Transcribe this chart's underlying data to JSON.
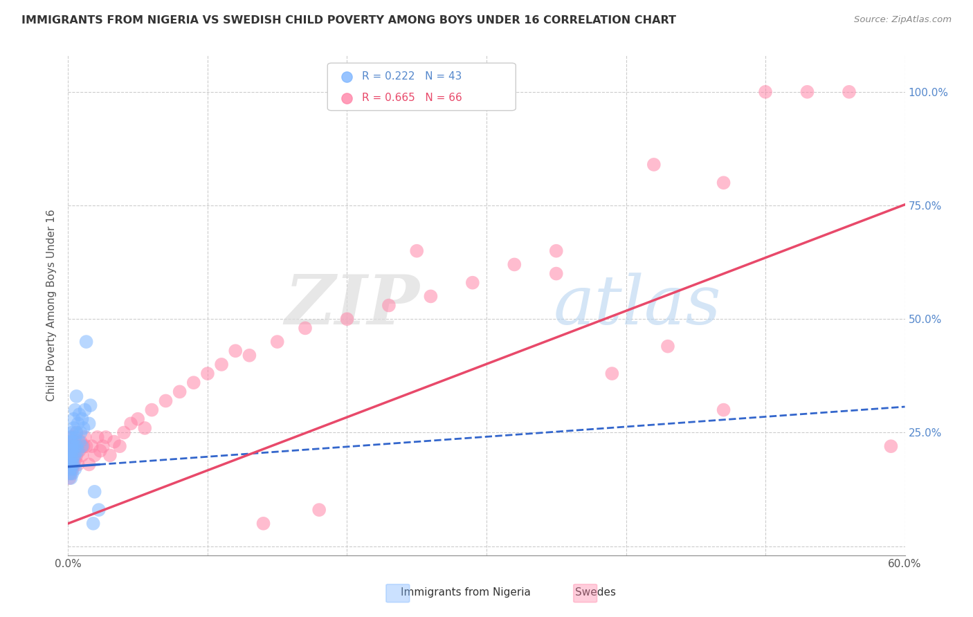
{
  "title": "IMMIGRANTS FROM NIGERIA VS SWEDISH CHILD POVERTY AMONG BOYS UNDER 16 CORRELATION CHART",
  "source": "Source: ZipAtlas.com",
  "ylabel": "Child Poverty Among Boys Under 16",
  "xlim": [
    0.0,
    0.6
  ],
  "ylim": [
    -0.02,
    1.08
  ],
  "xticks": [
    0.0,
    0.1,
    0.2,
    0.3,
    0.4,
    0.5,
    0.6
  ],
  "xticklabels": [
    "0.0%",
    "",
    "",
    "",
    "",
    "",
    "60.0%"
  ],
  "yticks": [
    0.0,
    0.25,
    0.5,
    0.75,
    1.0
  ],
  "yticklabels": [
    "",
    "25.0%",
    "50.0%",
    "75.0%",
    "100.0%"
  ],
  "legend1_text": "R = 0.222   N = 43",
  "legend2_text": "R = 0.665   N = 66",
  "blue_color": "#7EB6FF",
  "pink_color": "#FF85A8",
  "blue_line_color": "#3366CC",
  "pink_line_color": "#E8496A",
  "watermark_zip": "ZIP",
  "watermark_atlas": "atlas",
  "nigeria_x": [
    0.001,
    0.001,
    0.001,
    0.001,
    0.002,
    0.002,
    0.002,
    0.002,
    0.002,
    0.002,
    0.003,
    0.003,
    0.003,
    0.003,
    0.003,
    0.003,
    0.004,
    0.004,
    0.004,
    0.004,
    0.004,
    0.005,
    0.005,
    0.005,
    0.005,
    0.006,
    0.006,
    0.006,
    0.007,
    0.007,
    0.008,
    0.008,
    0.009,
    0.01,
    0.01,
    0.011,
    0.012,
    0.013,
    0.015,
    0.016,
    0.018,
    0.019,
    0.022
  ],
  "nigeria_y": [
    0.16,
    0.19,
    0.21,
    0.24,
    0.15,
    0.18,
    0.2,
    0.22,
    0.17,
    0.23,
    0.18,
    0.21,
    0.23,
    0.19,
    0.25,
    0.16,
    0.2,
    0.22,
    0.26,
    0.18,
    0.28,
    0.2,
    0.24,
    0.3,
    0.17,
    0.22,
    0.25,
    0.33,
    0.21,
    0.27,
    0.23,
    0.29,
    0.25,
    0.22,
    0.28,
    0.26,
    0.3,
    0.45,
    0.27,
    0.31,
    0.05,
    0.12,
    0.08
  ],
  "swedes_x": [
    0.001,
    0.001,
    0.001,
    0.002,
    0.002,
    0.002,
    0.003,
    0.003,
    0.003,
    0.004,
    0.004,
    0.005,
    0.005,
    0.006,
    0.006,
    0.007,
    0.007,
    0.008,
    0.009,
    0.01,
    0.011,
    0.012,
    0.013,
    0.015,
    0.017,
    0.019,
    0.021,
    0.023,
    0.025,
    0.027,
    0.03,
    0.033,
    0.037,
    0.04,
    0.045,
    0.05,
    0.055,
    0.06,
    0.07,
    0.08,
    0.09,
    0.1,
    0.11,
    0.12,
    0.13,
    0.15,
    0.17,
    0.2,
    0.23,
    0.26,
    0.29,
    0.32,
    0.35,
    0.39,
    0.43,
    0.47,
    0.5,
    0.53,
    0.56,
    0.59,
    0.25,
    0.35,
    0.42,
    0.47,
    0.14,
    0.18
  ],
  "swedes_y": [
    0.15,
    0.18,
    0.2,
    0.16,
    0.19,
    0.22,
    0.17,
    0.21,
    0.24,
    0.18,
    0.23,
    0.19,
    0.22,
    0.2,
    0.25,
    0.18,
    0.22,
    0.21,
    0.23,
    0.2,
    0.22,
    0.24,
    0.22,
    0.18,
    0.22,
    0.2,
    0.24,
    0.21,
    0.22,
    0.24,
    0.2,
    0.23,
    0.22,
    0.25,
    0.27,
    0.28,
    0.26,
    0.3,
    0.32,
    0.34,
    0.36,
    0.38,
    0.4,
    0.43,
    0.42,
    0.45,
    0.48,
    0.5,
    0.53,
    0.55,
    0.58,
    0.62,
    0.65,
    0.38,
    0.44,
    0.3,
    1.0,
    1.0,
    1.0,
    0.22,
    0.65,
    0.6,
    0.84,
    0.8,
    0.05,
    0.08
  ],
  "blue_line_x": [
    0.0,
    0.6
  ],
  "blue_line_y_intercept": 0.175,
  "blue_line_slope": 0.22,
  "pink_line_y_intercept": 0.05,
  "pink_line_slope": 1.17
}
